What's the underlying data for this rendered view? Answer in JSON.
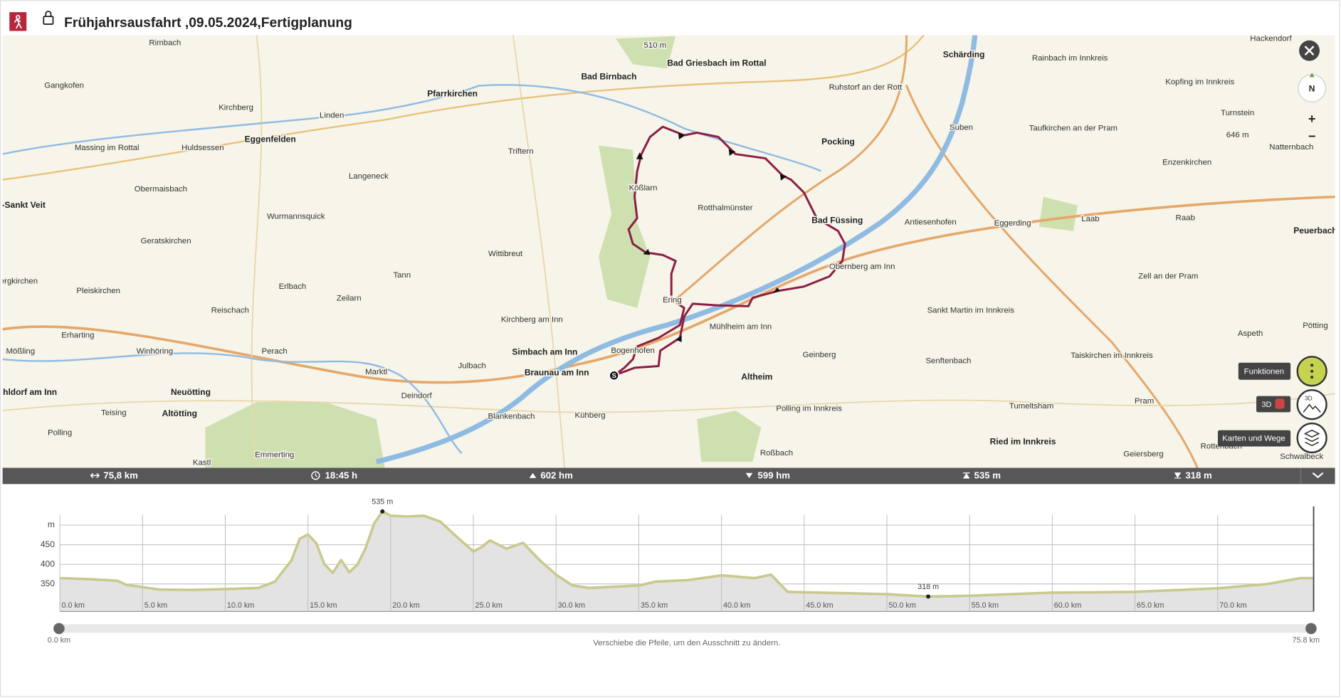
{
  "header": {
    "title": "Frühjahrsausfahrt ,09.05.2024,Fertigplanung"
  },
  "map": {
    "places": [
      "Rimbach",
      "Gangkofen",
      "Kirchberg",
      "Linden",
      "Eggenfelden",
      "Massing im Rottal",
      "Huldsessen",
      "Pfarrkirchen",
      "Bad Birnbach",
      "510 m",
      "Bad Griesbach im Rottal",
      "Ruhstorf an der Rott",
      "Schärding",
      "Rainbach im Innkreis",
      "Hackendorf",
      "Kopfing im Innkreis",
      "Triftern",
      "Langeneck",
      "Obermaisbach",
      "Kößlarn",
      "Rotthalmünster",
      "Pocking",
      "Suben",
      "Taufkirchen an der Pram",
      "Turnstein",
      "646 m",
      "Natternbach",
      "Enzenkirchen",
      "t-Sankt Veit",
      "Wurmannsquick",
      "Geratskirchen",
      "Wittibreut",
      "Bad Füssing",
      "Antiesenhofen",
      "Eggerding",
      "Laab",
      "Raab",
      "Peuerbach",
      "ergkirchen",
      "Tann",
      "Obernberg am Inn",
      "Zell an der Pram",
      "Pleiskirchen",
      "Erlbach",
      "Zeilarn",
      "Reischach",
      "Kirchberg am Inn",
      "Ering",
      "Mühlheim am Inn",
      "Sankt Martin im Innkreis",
      "Erharting",
      "Pötting",
      "Aspeth",
      "Mößling",
      "Winhöring",
      "Perach",
      "Simbach am Inn",
      "Bogenhofen",
      "Geinberg",
      "Senftenbach",
      "Taiskirchen im Innkreis",
      "Julbach",
      "Marktl",
      "Braunau am Inn",
      "Altheim",
      "ühldorf am Inn",
      "Neuötting",
      "Deindorf",
      "Polling im Innkreis",
      "Tumeltsham",
      "Pram",
      "Teising",
      "Altötting",
      "Blankenbach",
      "Kühberg",
      "Polling",
      "Emmerting",
      "Roßbach",
      "Ried im Innkreis",
      "Geiersberg",
      "Rottenbach",
      "Schwalbeck",
      "Kastl"
    ],
    "start_label": "S",
    "controls": {
      "north": "N",
      "zoom_in": "+",
      "zoom_out": "−",
      "functions": "Funktionen",
      "three_d": "3D",
      "maps": "Karten und Wege"
    }
  },
  "stats": {
    "distance": "75,8 km",
    "duration": "18:45 h",
    "ascent": "602 hm",
    "descent": "599 hm",
    "max_altitude": "535 m",
    "min_altitude": "318 m"
  },
  "chart_data": {
    "type": "area",
    "color": "#c9c98f",
    "fill": "#e3e3e3",
    "x": [
      0,
      2,
      3.5,
      4,
      6,
      8,
      10,
      12,
      13,
      14,
      14.5,
      15,
      15.5,
      16,
      16.5,
      17,
      17.5,
      18,
      18.5,
      19,
      19.5,
      20,
      21,
      22,
      23,
      24,
      25,
      25.5,
      26,
      27,
      28,
      29,
      30,
      31,
      32,
      35,
      36,
      38,
      40,
      42,
      43,
      44,
      46,
      50,
      52.5,
      55,
      60,
      65,
      70,
      73,
      75,
      75.8
    ],
    "values": [
      365,
      362,
      358,
      348,
      336,
      335,
      337,
      340,
      356,
      410,
      465,
      476,
      454,
      400,
      378,
      411,
      380,
      400,
      443,
      504,
      535,
      524,
      522,
      524,
      509,
      470,
      433,
      444,
      461,
      440,
      455,
      411,
      374,
      346,
      340,
      346,
      356,
      360,
      372,
      365,
      374,
      330,
      328,
      324,
      318,
      320,
      328,
      330,
      339,
      350,
      365,
      365
    ],
    "xlim": [
      0,
      75.8
    ],
    "ylim": [
      280,
      548
    ],
    "xticks": [
      {
        "value": 0,
        "label": "0.0 km"
      },
      {
        "value": 5,
        "label": "5.0 km"
      },
      {
        "value": 10,
        "label": "10.0 km"
      },
      {
        "value": 15,
        "label": "15.0 km"
      },
      {
        "value": 20,
        "label": "20.0 km"
      },
      {
        "value": 25,
        "label": "25.0 km"
      },
      {
        "value": 30,
        "label": "30.0 km"
      },
      {
        "value": 35,
        "label": "35.0 km"
      },
      {
        "value": 40,
        "label": "40.0 km"
      },
      {
        "value": 45,
        "label": "45.0 km"
      },
      {
        "value": 50,
        "label": "50.0 km"
      },
      {
        "value": 55,
        "label": "55.0 km"
      },
      {
        "value": 60,
        "label": "60.0 km"
      },
      {
        "value": 65,
        "label": "65.0 km"
      },
      {
        "value": 70,
        "label": "70.0 km"
      }
    ],
    "yticks": [
      350,
      400,
      450,
      {
        "value": 500,
        "label": "m"
      }
    ],
    "grid": true,
    "annotations": [
      {
        "x": 19.5,
        "y": 535,
        "label": "535 m"
      },
      {
        "x": 52.5,
        "y": 318,
        "label": "318 m"
      }
    ]
  },
  "slider": {
    "start": "0.0 km",
    "end": "75.8 km",
    "hint": "Verschiebe die Pfeile, um den Ausschnitt zu ändern."
  }
}
